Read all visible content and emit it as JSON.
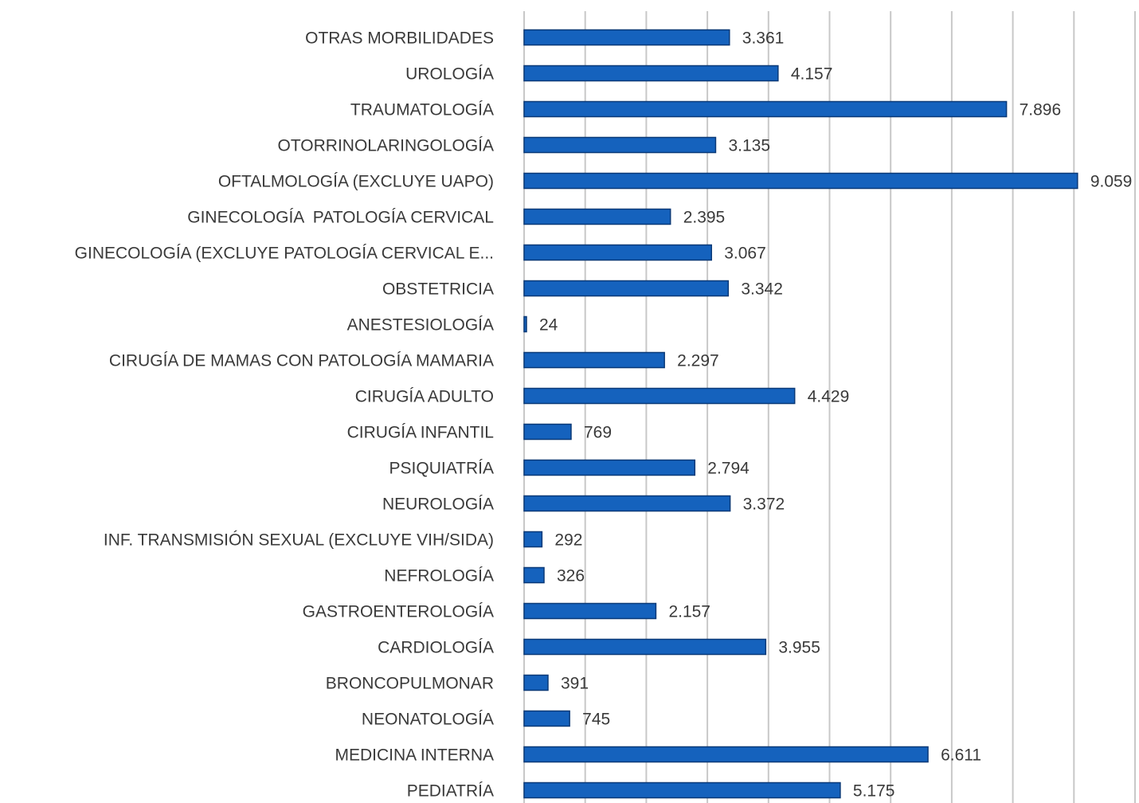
{
  "chart_data": {
    "type": "barh",
    "categories": [
      "OTRAS MORBILIDADES",
      "UROLOGÍA",
      "TRAUMATOLOGÍA",
      "OTORRINOLARINGOLOGÍA",
      "OFTALMOLOGÍA (EXCLUYE UAPO)",
      "GINECOLOGÍA  PATOLOGÍA CERVICAL",
      "GINECOLOGÍA (EXCLUYE PATOLOGÍA CERVICAL E...",
      "OBSTETRICIA",
      "ANESTESIOLOGÍA",
      "CIRUGÍA DE MAMAS CON PATOLOGÍA MAMARIA",
      "CIRUGÍA ADULTO",
      "CIRUGÍA INFANTIL",
      "PSIQUIATRÍA",
      "NEUROLOGÍA",
      "INF. TRANSMISIÓN SEXUAL (EXCLUYE VIH/SIDA)",
      "NEFROLOGÍA",
      "GASTROENTEROLOGÍA",
      "CARDIOLOGÍA",
      "BRONCOPULMONAR",
      "NEONATOLOGÍA",
      "MEDICINA INTERNA",
      "PEDIATRÍA"
    ],
    "values": [
      3361,
      4157,
      7896,
      3135,
      9059,
      2395,
      3067,
      3342,
      24,
      2297,
      4429,
      769,
      2794,
      3372,
      292,
      326,
      2157,
      3955,
      391,
      745,
      6611,
      5175
    ],
    "value_labels": [
      "3.361",
      "4.157",
      "7.896",
      "3.135",
      "9.059",
      "2.395",
      "3.067",
      "3.342",
      "24",
      "2.297",
      "4.429",
      "769",
      "2.794",
      "3.372",
      "292",
      "326",
      "2.157",
      "3.955",
      "391",
      "745",
      "6.611",
      "5.175"
    ],
    "color": "#1562bd",
    "xlim": [
      0,
      10000
    ],
    "xticks": [
      0,
      1000,
      2000,
      3000,
      4000,
      5000,
      6000,
      7000,
      8000,
      9000,
      10000
    ],
    "grid": true
  }
}
